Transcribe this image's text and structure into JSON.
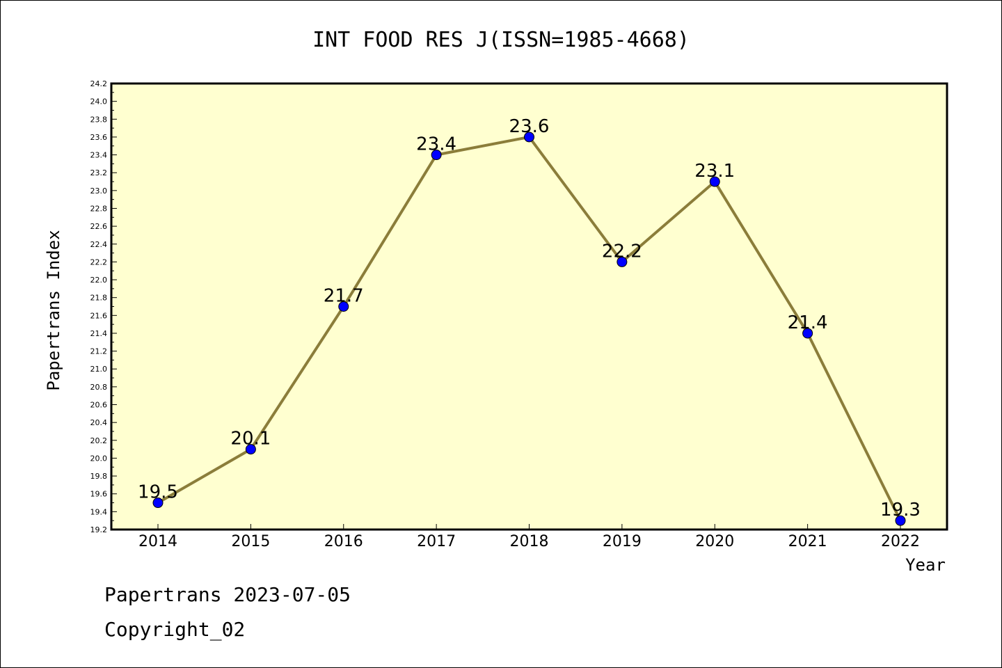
{
  "chart_data": {
    "type": "line",
    "title": "INT FOOD RES J(ISSN=1985-4668)",
    "xlabel": "Year",
    "ylabel": "Papertrans Index",
    "categories": [
      "2014",
      "2015",
      "2016",
      "2017",
      "2018",
      "2019",
      "2020",
      "2021",
      "2022"
    ],
    "series": [
      {
        "values": [
          19.5,
          20.1,
          21.7,
          23.4,
          23.6,
          22.2,
          23.1,
          21.4,
          19.3
        ],
        "labels": [
          "19.5",
          "20.1",
          "21.7",
          "23.4",
          "23.6",
          "22.2",
          "23.1",
          "21.4",
          "19.3"
        ]
      }
    ],
    "ylim": [
      19.2,
      24.2
    ],
    "yticks": [
      "19.2",
      "19.4",
      "19.6",
      "19.8",
      "20.0",
      "20.2",
      "20.4",
      "20.6",
      "20.8",
      "21.0",
      "21.2",
      "21.4",
      "21.6",
      "21.8",
      "22.0",
      "22.2",
      "22.4",
      "22.6",
      "22.8",
      "23.0",
      "23.2",
      "23.4",
      "23.6",
      "23.8",
      "24.0",
      "24.2"
    ],
    "grid": false,
    "colors": {
      "plot_background": "#ffffd0",
      "line": "#8b7d3a",
      "marker": "#0000ff"
    }
  },
  "footer": {
    "line1": "Papertrans 2023-07-05",
    "line2": "Copyright_02"
  }
}
